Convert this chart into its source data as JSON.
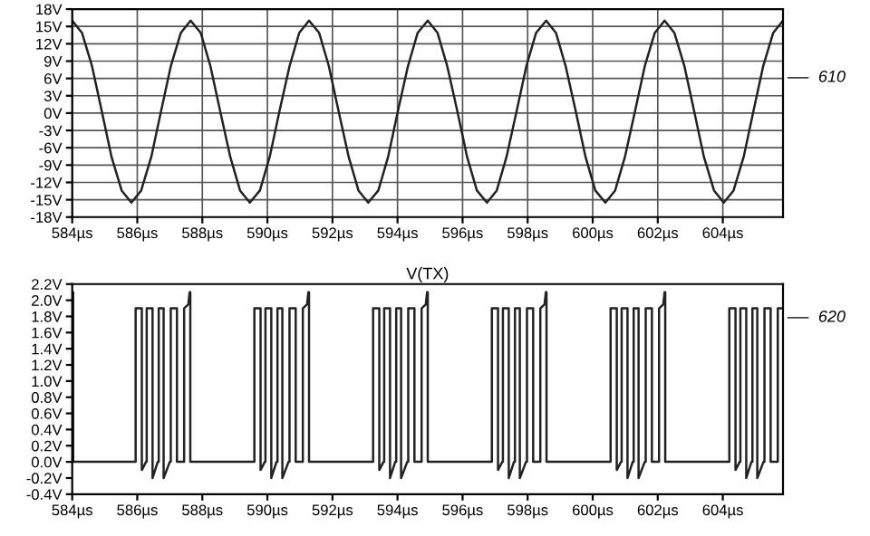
{
  "chart_data": [
    {
      "type": "line",
      "grid": true,
      "marker": "none",
      "line_style": "solid",
      "x": [
        584.0,
        584.3,
        584.61,
        584.91,
        585.21,
        585.52,
        585.82,
        586.12,
        586.43,
        586.73,
        587.03,
        587.34,
        587.64,
        587.95,
        588.25,
        588.55,
        588.86,
        589.16,
        589.46,
        589.77,
        590.07,
        590.37,
        590.68,
        590.98,
        591.28,
        591.59,
        591.89,
        592.19,
        592.5,
        592.8,
        593.1,
        593.41,
        593.71,
        594.01,
        594.32,
        594.62,
        594.93,
        595.23,
        595.53,
        595.84,
        596.14,
        596.44,
        596.75,
        597.05,
        597.35,
        597.66,
        597.96,
        598.26,
        598.57,
        598.87,
        599.17,
        599.48,
        599.78,
        600.08,
        600.39,
        600.69,
        600.99,
        601.3,
        601.6,
        601.91,
        602.21,
        602.51,
        602.82,
        603.12,
        603.42,
        603.73,
        604.03,
        604.33,
        604.64,
        604.94,
        605.24,
        605.55,
        605.85
      ],
      "series": [
        {
          "color": "#222222",
          "values": [
            16,
            13.9,
            8.1,
            0.3,
            -7.6,
            -13.4,
            -15.5,
            -13.4,
            -7.6,
            0.3,
            8.1,
            13.9,
            16,
            13.9,
            8.1,
            0.3,
            -7.6,
            -13.4,
            -15.5,
            -13.4,
            -7.6,
            0.3,
            8.1,
            13.9,
            16,
            13.9,
            8.1,
            0.3,
            -7.6,
            -13.4,
            -15.5,
            -13.4,
            -7.6,
            0.3,
            8.1,
            13.9,
            16,
            13.9,
            8.1,
            0.3,
            -7.6,
            -13.4,
            -15.5,
            -13.4,
            -7.6,
            0.3,
            8.1,
            13.9,
            16,
            13.9,
            8.1,
            0.3,
            -7.6,
            -13.4,
            -15.5,
            -13.4,
            -7.6,
            0.3,
            8.1,
            13.9,
            16,
            13.9,
            8.1,
            0.3,
            -7.6,
            -13.4,
            -15.5,
            -13.4,
            -7.6,
            0.3,
            8.1,
            13.9,
            16
          ]
        }
      ],
      "xlim": [
        584,
        605.85
      ],
      "xticks": [
        {
          "value": 584,
          "label": "584µs"
        },
        {
          "value": 586,
          "label": "586µs"
        },
        {
          "value": 588,
          "label": "588µs"
        },
        {
          "value": 590,
          "label": "590µs"
        },
        {
          "value": 592,
          "label": "592µs"
        },
        {
          "value": 594,
          "label": "594µs"
        },
        {
          "value": 596,
          "label": "596µs"
        },
        {
          "value": 598,
          "label": "598µs"
        },
        {
          "value": 600,
          "label": "600µs"
        },
        {
          "value": 602,
          "label": "602µs"
        },
        {
          "value": 604,
          "label": "604µs"
        }
      ],
      "ylim": [
        -18,
        18
      ],
      "yticks": [
        {
          "value": -18,
          "label": "-18V"
        },
        {
          "value": -15,
          "label": "-15V"
        },
        {
          "value": -12,
          "label": "-12V"
        },
        {
          "value": -9,
          "label": "-9V"
        },
        {
          "value": -6,
          "label": "-6V"
        },
        {
          "value": -3,
          "label": "-3V"
        },
        {
          "value": 0,
          "label": "0V"
        },
        {
          "value": 3,
          "label": "3V"
        },
        {
          "value": 6,
          "label": "6V"
        },
        {
          "value": 9,
          "label": "9V"
        },
        {
          "value": 12,
          "label": "12V"
        },
        {
          "value": 15,
          "label": "15V"
        },
        {
          "value": 18,
          "label": "18V"
        }
      ],
      "annotations": [
        "610"
      ]
    },
    {
      "type": "line",
      "title": "V(TX)",
      "grid": false,
      "marker": "none",
      "line_style": "solid",
      "x": [
        584.0,
        584.03,
        584.03,
        585.95,
        585.95,
        586.14,
        586.14,
        586.27,
        586.29,
        586.29,
        586.47,
        586.47,
        586.63,
        586.66,
        586.66,
        586.81,
        586.81,
        587.0,
        587.03,
        587.03,
        587.22,
        587.22,
        587.44,
        587.44,
        587.57,
        587.61,
        587.63,
        587.63,
        589.6,
        589.6,
        589.79,
        589.79,
        589.92,
        589.94,
        589.94,
        590.12,
        590.12,
        590.28,
        590.31,
        590.31,
        590.46,
        590.46,
        590.65,
        590.68,
        590.68,
        590.87,
        590.87,
        591.09,
        591.09,
        591.22,
        591.26,
        591.28,
        591.28,
        593.25,
        593.25,
        593.44,
        593.44,
        593.57,
        593.59,
        593.59,
        593.77,
        593.77,
        593.93,
        593.96,
        593.96,
        594.11,
        594.11,
        594.3,
        594.33,
        594.33,
        594.52,
        594.52,
        594.74,
        594.74,
        594.87,
        594.91,
        594.93,
        594.93,
        596.9,
        596.9,
        597.09,
        597.09,
        597.22,
        597.24,
        597.24,
        597.42,
        597.42,
        597.58,
        597.61,
        597.61,
        597.76,
        597.76,
        597.95,
        597.98,
        597.98,
        598.17,
        598.17,
        598.39,
        598.39,
        598.52,
        598.56,
        598.58,
        598.58,
        600.55,
        600.55,
        600.74,
        600.74,
        600.87,
        600.89,
        600.89,
        601.07,
        601.07,
        601.23,
        601.26,
        601.26,
        601.41,
        601.41,
        601.6,
        601.63,
        601.63,
        601.82,
        601.82,
        602.04,
        602.04,
        602.17,
        602.21,
        602.23,
        602.23,
        604.2,
        604.2,
        604.39,
        604.39,
        604.52,
        604.54,
        604.54,
        604.72,
        604.72,
        604.88,
        604.91,
        604.91,
        605.06,
        605.06,
        605.25,
        605.28,
        605.28,
        605.47,
        605.47,
        605.69,
        605.69,
        605.85
      ],
      "series": [
        {
          "color": "#222222",
          "values": [
            2.1,
            2.1,
            0,
            0,
            1.9,
            1.9,
            -0.1,
            0,
            0,
            1.9,
            1.9,
            -0.2,
            0,
            0,
            1.9,
            1.9,
            -0.2,
            0,
            0,
            1.9,
            1.9,
            0,
            0,
            1.9,
            1.95,
            2.1,
            2.1,
            0,
            0,
            1.9,
            1.9,
            -0.1,
            0,
            0,
            1.9,
            1.9,
            -0.2,
            0,
            0,
            1.9,
            1.9,
            -0.2,
            0,
            0,
            1.9,
            1.9,
            0,
            0,
            1.9,
            1.95,
            2.1,
            2.1,
            0,
            0,
            1.9,
            1.9,
            -0.1,
            0,
            0,
            1.9,
            1.9,
            -0.2,
            0,
            0,
            1.9,
            1.9,
            -0.2,
            0,
            0,
            1.9,
            1.9,
            0,
            0,
            1.9,
            1.95,
            2.1,
            2.1,
            0,
            0,
            1.9,
            1.9,
            -0.1,
            0,
            0,
            1.9,
            1.9,
            -0.2,
            0,
            0,
            1.9,
            1.9,
            -0.2,
            0,
            0,
            1.9,
            1.9,
            0,
            0,
            1.9,
            1.95,
            2.1,
            2.1,
            0,
            0,
            1.9,
            1.9,
            -0.1,
            0,
            0,
            1.9,
            1.9,
            -0.2,
            0,
            0,
            1.9,
            1.9,
            -0.2,
            0,
            0,
            1.9,
            1.9,
            0,
            0,
            1.9,
            1.95,
            2.1,
            2.1,
            0,
            0,
            1.9,
            1.9,
            -0.1,
            0,
            0,
            1.9,
            1.9,
            -0.2,
            0,
            0,
            1.9,
            1.9,
            -0.2,
            0,
            0,
            1.9,
            1.9,
            0,
            0,
            1.9,
            1.9
          ]
        }
      ],
      "xlim": [
        584,
        605.85
      ],
      "xticks": [
        {
          "value": 584,
          "label": "584µs"
        },
        {
          "value": 586,
          "label": "586µs"
        },
        {
          "value": 588,
          "label": "588µs"
        },
        {
          "value": 590,
          "label": "590µs"
        },
        {
          "value": 592,
          "label": "592µs"
        },
        {
          "value": 594,
          "label": "594µs"
        },
        {
          "value": 596,
          "label": "596µs"
        },
        {
          "value": 598,
          "label": "598µs"
        },
        {
          "value": 600,
          "label": "600µs"
        },
        {
          "value": 602,
          "label": "602µs"
        },
        {
          "value": 604,
          "label": "604µs"
        }
      ],
      "ylim": [
        -0.4,
        2.2
      ],
      "yticks": [
        {
          "value": -0.4,
          "label": "-0.4V"
        },
        {
          "value": -0.2,
          "label": "-0.2V"
        },
        {
          "value": 0,
          "label": "0.0V"
        },
        {
          "value": 0.2,
          "label": "0.2V"
        },
        {
          "value": 0.4,
          "label": "0.4V"
        },
        {
          "value": 0.6,
          "label": "0.6V"
        },
        {
          "value": 0.8,
          "label": "0.8V"
        },
        {
          "value": 1.0,
          "label": "1.0V"
        },
        {
          "value": 1.2,
          "label": "1.2V"
        },
        {
          "value": 1.4,
          "label": "1.4V"
        },
        {
          "value": 1.6,
          "label": "1.6V"
        },
        {
          "value": 1.8,
          "label": "1.8V"
        },
        {
          "value": 2.0,
          "label": "2.0V"
        },
        {
          "value": 2.2,
          "label": "2.2V"
        }
      ],
      "annotations": [
        "620"
      ]
    }
  ]
}
